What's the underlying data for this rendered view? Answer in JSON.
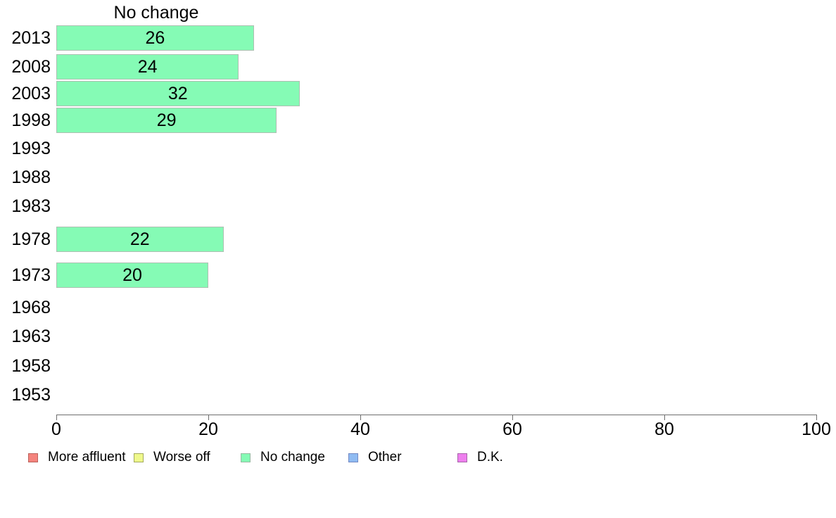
{
  "chart_data": {
    "type": "bar",
    "orientation": "horizontal",
    "title": "No change",
    "categories": [
      "2013",
      "2008",
      "2003",
      "1998",
      "1993",
      "1988",
      "1983",
      "1978",
      "1973",
      "1968",
      "1963",
      "1958",
      "1953"
    ],
    "values": [
      26,
      24,
      32,
      29,
      null,
      null,
      null,
      22,
      20,
      null,
      null,
      null,
      null
    ],
    "xlabel": "",
    "ylabel": "",
    "xlim": [
      0,
      100
    ],
    "x_ticks": [
      0,
      20,
      40,
      60,
      80,
      100
    ],
    "grid": false,
    "bar_fill_color": "#85fbb5",
    "bar_border_color": "#aebfb2",
    "axis_color": "#6e6e6e",
    "text_color": "#000000",
    "legend_position": "bottom",
    "legend": [
      {
        "label": "More affluent",
        "fill": "#f4837d",
        "border": "#bb625c"
      },
      {
        "label": "Worse off",
        "fill": "#eff98b",
        "border": "#a3aa5e"
      },
      {
        "label": "No change",
        "fill": "#85fbb5",
        "border": "#97b9a2"
      },
      {
        "label": "Other",
        "fill": "#8fbbf2",
        "border": "#7389c4"
      },
      {
        "label": "D.K.",
        "fill": "#ee7fee",
        "border": "#a766aa"
      }
    ]
  }
}
